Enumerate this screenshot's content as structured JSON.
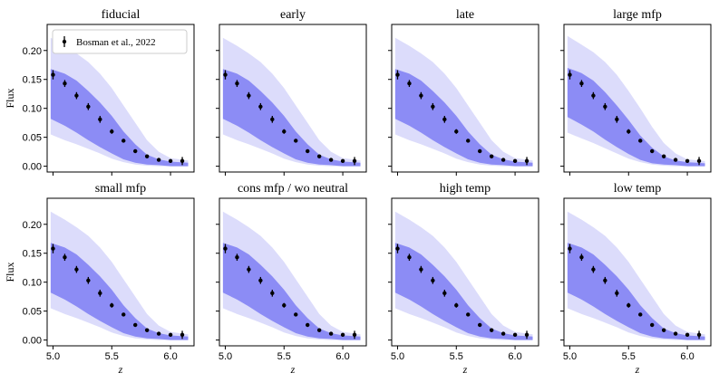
{
  "chart_data": {
    "type": "grid_of_band_plots_with_errorbars",
    "shared": {
      "xlabel": "z",
      "ylabel": "Flux",
      "xlim": [
        4.95,
        6.2
      ],
      "ylim": [
        -0.01,
        0.245
      ],
      "xticks": [
        5.0,
        5.5,
        6.0
      ],
      "xtick_labels": [
        "5.0",
        "5.5",
        "6.0"
      ],
      "yticks": [
        0.0,
        0.05,
        0.1,
        0.15,
        0.2
      ],
      "ytick_labels": [
        "0.00",
        "0.05",
        "0.10",
        "0.15",
        "0.20"
      ],
      "colors": {
        "outer_band": "#dcdcfb",
        "inner_band": "#8c8cf5",
        "points": "#000000"
      },
      "observations": {
        "name": "Bosman et al., 2022",
        "x": [
          5.0,
          5.1,
          5.2,
          5.3,
          5.4,
          5.5,
          5.6,
          5.7,
          5.8,
          5.9,
          6.0,
          6.1
        ],
        "y": [
          0.158,
          0.143,
          0.122,
          0.103,
          0.081,
          0.06,
          0.044,
          0.026,
          0.017,
          0.011,
          0.009,
          0.009
        ],
        "yerr": [
          0.008,
          0.006,
          0.006,
          0.006,
          0.006,
          0.004,
          0.003,
          0.003,
          0.002,
          0.002,
          0.002,
          0.007
        ]
      },
      "band_x": [
        4.98,
        5.1,
        5.2,
        5.3,
        5.4,
        5.5,
        5.6,
        5.7,
        5.8,
        5.9,
        6.0,
        6.15
      ],
      "legend_placement": "top-left of first panel"
    },
    "panels": [
      {
        "title": "fiducial",
        "outer_upper": [
          0.222,
          0.208,
          0.195,
          0.18,
          0.16,
          0.135,
          0.105,
          0.075,
          0.045,
          0.025,
          0.014,
          0.01
        ],
        "outer_lower": [
          0.055,
          0.045,
          0.038,
          0.03,
          0.022,
          0.013,
          0.007,
          0.003,
          0.001,
          0.0,
          0.0,
          0.0
        ],
        "inner_upper": [
          0.168,
          0.16,
          0.148,
          0.13,
          0.11,
          0.087,
          0.06,
          0.038,
          0.02,
          0.012,
          0.008,
          0.006
        ],
        "inner_lower": [
          0.082,
          0.07,
          0.058,
          0.045,
          0.033,
          0.022,
          0.012,
          0.006,
          0.003,
          0.002,
          0.0,
          0.0
        ]
      },
      {
        "title": "early",
        "outer_upper": [
          0.222,
          0.208,
          0.195,
          0.18,
          0.16,
          0.135,
          0.105,
          0.075,
          0.045,
          0.025,
          0.014,
          0.01
        ],
        "outer_lower": [
          0.055,
          0.045,
          0.038,
          0.03,
          0.022,
          0.013,
          0.007,
          0.003,
          0.001,
          0.0,
          0.0,
          0.0
        ],
        "inner_upper": [
          0.168,
          0.16,
          0.148,
          0.13,
          0.11,
          0.087,
          0.06,
          0.038,
          0.02,
          0.012,
          0.008,
          0.006
        ],
        "inner_lower": [
          0.082,
          0.07,
          0.058,
          0.045,
          0.033,
          0.022,
          0.012,
          0.006,
          0.003,
          0.002,
          0.0,
          0.0
        ]
      },
      {
        "title": "late",
        "outer_upper": [
          0.222,
          0.208,
          0.195,
          0.18,
          0.16,
          0.135,
          0.105,
          0.075,
          0.045,
          0.025,
          0.014,
          0.01
        ],
        "outer_lower": [
          0.055,
          0.045,
          0.038,
          0.03,
          0.022,
          0.013,
          0.007,
          0.003,
          0.001,
          0.0,
          0.0,
          0.0
        ],
        "inner_upper": [
          0.168,
          0.16,
          0.148,
          0.13,
          0.11,
          0.087,
          0.06,
          0.038,
          0.02,
          0.012,
          0.008,
          0.006
        ],
        "inner_lower": [
          0.082,
          0.07,
          0.058,
          0.045,
          0.033,
          0.022,
          0.012,
          0.006,
          0.003,
          0.002,
          0.0,
          0.0
        ]
      },
      {
        "title": "large mfp",
        "outer_upper": [
          0.225,
          0.21,
          0.197,
          0.18,
          0.158,
          0.13,
          0.1,
          0.068,
          0.04,
          0.022,
          0.012,
          0.009
        ],
        "outer_lower": [
          0.058,
          0.048,
          0.04,
          0.031,
          0.022,
          0.013,
          0.007,
          0.003,
          0.001,
          0.0,
          0.0,
          0.0
        ],
        "inner_upper": [
          0.17,
          0.161,
          0.148,
          0.128,
          0.105,
          0.08,
          0.053,
          0.032,
          0.017,
          0.01,
          0.007,
          0.005
        ],
        "inner_lower": [
          0.085,
          0.072,
          0.06,
          0.046,
          0.033,
          0.021,
          0.011,
          0.005,
          0.003,
          0.002,
          0.0,
          0.0
        ]
      },
      {
        "title": "small mfp",
        "outer_upper": [
          0.222,
          0.208,
          0.195,
          0.18,
          0.16,
          0.135,
          0.105,
          0.075,
          0.045,
          0.025,
          0.014,
          0.01
        ],
        "outer_lower": [
          0.055,
          0.045,
          0.038,
          0.03,
          0.022,
          0.013,
          0.007,
          0.003,
          0.001,
          0.0,
          0.0,
          0.0
        ],
        "inner_upper": [
          0.168,
          0.16,
          0.148,
          0.13,
          0.11,
          0.087,
          0.06,
          0.038,
          0.02,
          0.012,
          0.008,
          0.006
        ],
        "inner_lower": [
          0.082,
          0.07,
          0.058,
          0.045,
          0.033,
          0.022,
          0.012,
          0.006,
          0.003,
          0.002,
          0.0,
          0.0
        ]
      },
      {
        "title": "cons mfp / wo neutral",
        "outer_upper": [
          0.222,
          0.208,
          0.195,
          0.18,
          0.16,
          0.135,
          0.105,
          0.075,
          0.045,
          0.025,
          0.014,
          0.01
        ],
        "outer_lower": [
          0.055,
          0.045,
          0.038,
          0.03,
          0.022,
          0.013,
          0.007,
          0.003,
          0.001,
          0.0,
          0.0,
          0.0
        ],
        "inner_upper": [
          0.168,
          0.16,
          0.148,
          0.13,
          0.11,
          0.087,
          0.06,
          0.038,
          0.02,
          0.012,
          0.008,
          0.006
        ],
        "inner_lower": [
          0.082,
          0.07,
          0.058,
          0.045,
          0.033,
          0.022,
          0.012,
          0.006,
          0.003,
          0.002,
          0.0,
          0.0
        ]
      },
      {
        "title": "high temp",
        "outer_upper": [
          0.222,
          0.208,
          0.195,
          0.18,
          0.16,
          0.135,
          0.105,
          0.075,
          0.045,
          0.025,
          0.014,
          0.01
        ],
        "outer_lower": [
          0.055,
          0.045,
          0.038,
          0.03,
          0.022,
          0.013,
          0.007,
          0.003,
          0.001,
          0.0,
          0.0,
          0.0
        ],
        "inner_upper": [
          0.168,
          0.16,
          0.148,
          0.13,
          0.11,
          0.087,
          0.06,
          0.038,
          0.02,
          0.012,
          0.008,
          0.006
        ],
        "inner_lower": [
          0.082,
          0.07,
          0.058,
          0.045,
          0.033,
          0.022,
          0.012,
          0.006,
          0.003,
          0.002,
          0.0,
          0.0
        ]
      },
      {
        "title": "low temp",
        "outer_upper": [
          0.222,
          0.208,
          0.195,
          0.18,
          0.16,
          0.135,
          0.105,
          0.075,
          0.045,
          0.025,
          0.014,
          0.01
        ],
        "outer_lower": [
          0.055,
          0.045,
          0.038,
          0.03,
          0.022,
          0.013,
          0.007,
          0.003,
          0.001,
          0.0,
          0.0,
          0.0
        ],
        "inner_upper": [
          0.168,
          0.16,
          0.148,
          0.13,
          0.11,
          0.087,
          0.06,
          0.038,
          0.02,
          0.012,
          0.008,
          0.006
        ],
        "inner_lower": [
          0.082,
          0.07,
          0.058,
          0.045,
          0.033,
          0.022,
          0.012,
          0.006,
          0.003,
          0.002,
          0.0,
          0.0
        ]
      }
    ]
  }
}
